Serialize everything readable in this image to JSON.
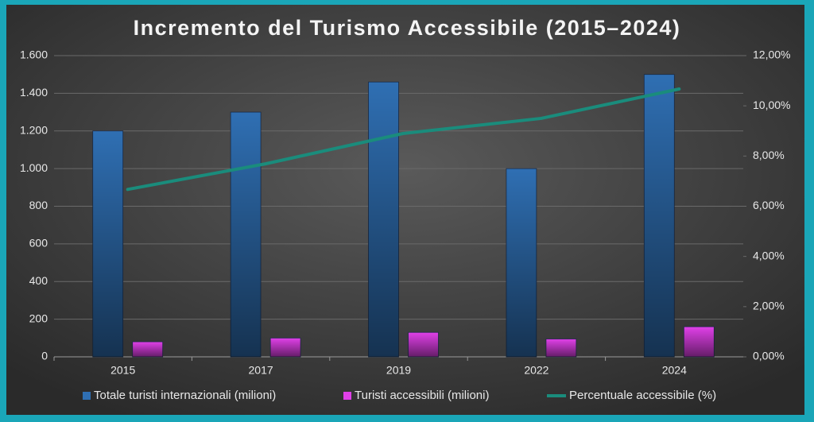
{
  "chart_data": {
    "type": "bar_line",
    "title": "Incremento del Turismo Accessibile (2015–2024)",
    "categories": [
      "2015",
      "2017",
      "2019",
      "2022",
      "2024"
    ],
    "series": [
      {
        "name": "Totale turisti internazionali (milioni)",
        "type": "bar",
        "color": "#2f6fb3",
        "values": [
          1200,
          1300,
          1460,
          1000,
          1500
        ]
      },
      {
        "name": "Turisti accessibili (milioni)",
        "type": "bar",
        "color": "#e040e8",
        "values": [
          80,
          100,
          130,
          95,
          160
        ]
      },
      {
        "name": "Percentuale accessibile (%)",
        "type": "line",
        "axis": "y2",
        "color": "#1a8c7c",
        "values": [
          6.67,
          7.69,
          8.9,
          9.5,
          10.67
        ]
      }
    ],
    "ylim": [
      0,
      1600
    ],
    "yticks": [
      0,
      200,
      400,
      600,
      800,
      {
        "value": 1000,
        "label": "1.000"
      },
      {
        "value": 1200,
        "label": "1.200"
      },
      {
        "value": 1400,
        "label": "1.400"
      },
      {
        "value": 1600,
        "label": "1.600"
      }
    ],
    "y2lim": [
      0,
      12
    ],
    "y2ticks": [
      {
        "value": 0,
        "label": "0,00%"
      },
      {
        "value": 2,
        "label": "2,00%"
      },
      {
        "value": 4,
        "label": "4,00%"
      },
      {
        "value": 6,
        "label": "6,00%"
      },
      {
        "value": 8,
        "label": "8,00%"
      },
      {
        "value": 10,
        "label": "10,00%"
      },
      {
        "value": 12,
        "label": "12,00%"
      }
    ],
    "grid": true,
    "legend": "bottom"
  }
}
